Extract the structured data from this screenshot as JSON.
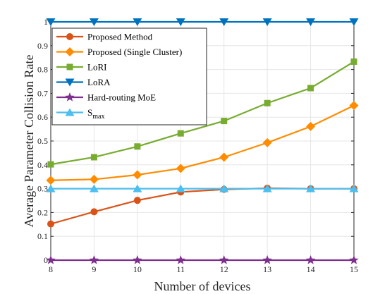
{
  "chart_data": {
    "type": "line",
    "xlabel": "Number of devices",
    "ylabel": "Average Parameter Collision Rate",
    "xlim": [
      8,
      15
    ],
    "ylim": [
      0,
      1
    ],
    "x": [
      8,
      9,
      10,
      11,
      12,
      13,
      14,
      15
    ],
    "x_ticks": [
      "8",
      "9",
      "10",
      "11",
      "12",
      "13",
      "14",
      "15"
    ],
    "y_ticks": [
      "0",
      "0.1",
      "0.2",
      "0.3",
      "0.4",
      "0.5",
      "0.6",
      "0.7",
      "0.8",
      "0.9",
      "1"
    ],
    "y_tick_values": [
      0,
      0.1,
      0.2,
      0.3,
      0.4,
      0.5,
      0.6,
      0.7,
      0.8,
      0.9,
      1
    ],
    "grid": true,
    "legend_position": "top-left",
    "series": [
      {
        "name": "Proposed Method",
        "marker": "circle",
        "color": "#D95319",
        "values": [
          0.152,
          0.203,
          0.251,
          0.286,
          0.297,
          0.302,
          0.3,
          0.3
        ]
      },
      {
        "name": "Proposed (Single Cluster)",
        "marker": "diamond",
        "color": "#FF8C00",
        "values": [
          0.335,
          0.339,
          0.358,
          0.385,
          0.432,
          0.493,
          0.561,
          0.649
        ]
      },
      {
        "name": "LoRI",
        "marker": "square",
        "color": "#77AC30",
        "values": [
          0.402,
          0.432,
          0.477,
          0.532,
          0.584,
          0.659,
          0.722,
          0.833
        ]
      },
      {
        "name": "LoRA",
        "marker": "triangle-down",
        "color": "#0072BD",
        "values": [
          1,
          1,
          1,
          1,
          1,
          1,
          1,
          1
        ]
      },
      {
        "name": "Hard-routing MoE",
        "marker": "star",
        "color": "#7E2F8E",
        "values": [
          0,
          0,
          0,
          0,
          0,
          0,
          0,
          0
        ]
      },
      {
        "name": "S",
        "name_subscript": "max",
        "marker": "triangle-up",
        "color": "#4DBEEE",
        "values": [
          0.3,
          0.3,
          0.3,
          0.3,
          0.3,
          0.3,
          0.3,
          0.3
        ]
      }
    ]
  }
}
